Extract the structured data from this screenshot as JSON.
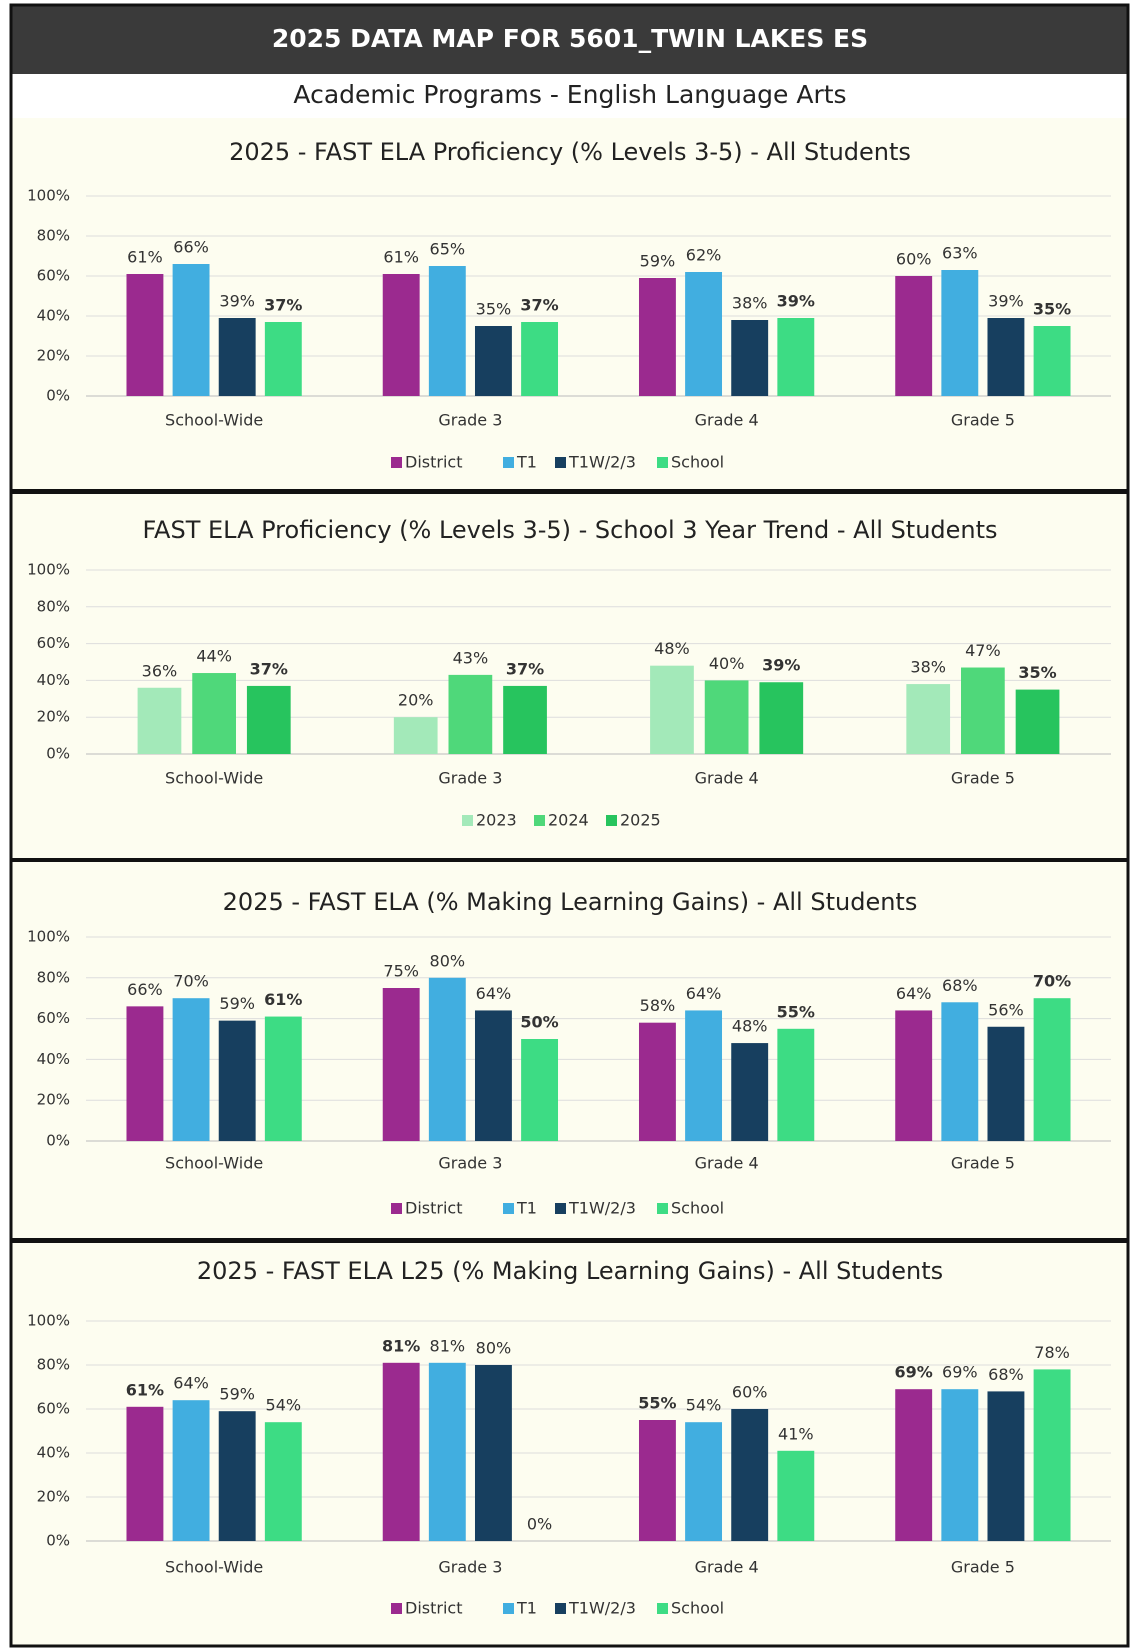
{
  "title": "2025 DATA MAP FOR 5601_TWIN LAKES ES",
  "subtitle": "Academic Programs - English Language Arts",
  "chart_data": [
    {
      "type": "bar",
      "title": "2025 - FAST ELA Proficiency (% Levels 3-5) - All Students",
      "categories": [
        "School-Wide",
        "Grade 3",
        "Grade 4",
        "Grade 5"
      ],
      "series": [
        {
          "name": "District",
          "color": "#9b2a8f",
          "values": [
            61,
            61,
            59,
            60
          ],
          "value_labels": [
            "61%",
            "61%",
            "59%",
            "60%"
          ]
        },
        {
          "name": "T1",
          "color": "#41aee0",
          "values": [
            66,
            65,
            62,
            63
          ],
          "value_labels": [
            "66%",
            "65%",
            "62%",
            "63%"
          ]
        },
        {
          "name": "T1W/2/3",
          "color": "#173f5f",
          "values": [
            39,
            35,
            38,
            39
          ],
          "value_labels": [
            "39%",
            "35%",
            "38%",
            "39%"
          ]
        },
        {
          "name": "School",
          "color": "#3ddc84",
          "values": [
            37,
            37,
            39,
            35
          ],
          "value_labels": [
            "37%",
            "37%",
            "39%",
            "35%"
          ]
        }
      ],
      "ylim": [
        0,
        100
      ],
      "yticks": [
        {
          "value": 0,
          "label": "0%"
        },
        {
          "value": 20,
          "label": "20%"
        },
        {
          "value": 40,
          "label": "40%"
        },
        {
          "value": 60,
          "label": "60%"
        },
        {
          "value": 80,
          "label": "80%"
        },
        {
          "value": 100,
          "label": "100%"
        }
      ],
      "grid": true,
      "legend": "bottom"
    },
    {
      "type": "bar",
      "title": "FAST ELA Proficiency (% Levels 3-5) - School 3 Year Trend - All Students",
      "categories": [
        "School-Wide",
        "Grade 3",
        "Grade 4",
        "Grade 5"
      ],
      "series": [
        {
          "name": "2023",
          "color": "#a3e9b9",
          "values": [
            36,
            20,
            48,
            38
          ],
          "value_labels": [
            "36%",
            "20%",
            "48%",
            "38%"
          ]
        },
        {
          "name": "2024",
          "color": "#4fd87a",
          "values": [
            44,
            43,
            40,
            47
          ],
          "value_labels": [
            "44%",
            "43%",
            "40%",
            "47%"
          ]
        },
        {
          "name": "2025",
          "color": "#27c45e",
          "values": [
            37,
            37,
            39,
            35
          ],
          "value_labels": [
            "37%",
            "37%",
            "39%",
            "35%"
          ]
        }
      ],
      "ylim": [
        0,
        100
      ],
      "yticks": [
        {
          "value": 0,
          "label": "0%"
        },
        {
          "value": 20,
          "label": "20%"
        },
        {
          "value": 40,
          "label": "40%"
        },
        {
          "value": 60,
          "label": "60%"
        },
        {
          "value": 80,
          "label": "80%"
        },
        {
          "value": 100,
          "label": "100%"
        }
      ],
      "grid": true,
      "legend": "bottom"
    },
    {
      "type": "bar",
      "title": "2025 - FAST ELA (% Making Learning Gains) - All Students",
      "categories": [
        "School-Wide",
        "Grade 3",
        "Grade 4",
        "Grade 5"
      ],
      "series": [
        {
          "name": "District",
          "color": "#9b2a8f",
          "values": [
            66,
            75,
            58,
            64
          ],
          "value_labels": [
            "66%",
            "75%",
            "58%",
            "64%"
          ]
        },
        {
          "name": "T1",
          "color": "#41aee0",
          "values": [
            70,
            80,
            64,
            68
          ],
          "value_labels": [
            "70%",
            "80%",
            "64%",
            "68%"
          ]
        },
        {
          "name": "T1W/2/3",
          "color": "#173f5f",
          "values": [
            59,
            64,
            48,
            56
          ],
          "value_labels": [
            "59%",
            "64%",
            "48%",
            "56%"
          ]
        },
        {
          "name": "School",
          "color": "#3ddc84",
          "values": [
            61,
            50,
            55,
            70
          ],
          "value_labels": [
            "61%",
            "50%",
            "55%",
            "70%"
          ]
        }
      ],
      "ylim": [
        0,
        100
      ],
      "yticks": [
        {
          "value": 0,
          "label": "0%"
        },
        {
          "value": 20,
          "label": "20%"
        },
        {
          "value": 40,
          "label": "40%"
        },
        {
          "value": 60,
          "label": "60%"
        },
        {
          "value": 80,
          "label": "80%"
        },
        {
          "value": 100,
          "label": "100%"
        }
      ],
      "grid": true,
      "legend": "bottom"
    },
    {
      "type": "bar",
      "title": "2025 - FAST ELA L25 (% Making Learning Gains) - All Students",
      "categories": [
        "School-Wide",
        "Grade 3",
        "Grade 4",
        "Grade 5"
      ],
      "series": [
        {
          "name": "District",
          "color": "#9b2a8f",
          "values": [
            61,
            81,
            55,
            69
          ],
          "value_labels": [
            "61%",
            "81%",
            "55%",
            "69%"
          ]
        },
        {
          "name": "T1",
          "color": "#41aee0",
          "values": [
            64,
            81,
            54,
            69
          ],
          "value_labels": [
            "64%",
            "81%",
            "54%",
            "69%"
          ]
        },
        {
          "name": "T1W/2/3",
          "color": "#173f5f",
          "values": [
            59,
            80,
            60,
            68
          ],
          "value_labels": [
            "59%",
            "80%",
            "60%",
            "68%"
          ]
        },
        {
          "name": "School",
          "color": "#3ddc84",
          "values": [
            54,
            0,
            41,
            78
          ],
          "value_labels": [
            "54%",
            "0%",
            "41%",
            "78%"
          ]
        }
      ],
      "ylim": [
        0,
        100
      ],
      "yticks": [
        {
          "value": 0,
          "label": "0%"
        },
        {
          "value": 20,
          "label": "20%"
        },
        {
          "value": 40,
          "label": "40%"
        },
        {
          "value": 60,
          "label": "60%"
        },
        {
          "value": 80,
          "label": "80%"
        },
        {
          "value": 100,
          "label": "100%"
        }
      ],
      "grid": true,
      "legend": "bottom"
    }
  ]
}
